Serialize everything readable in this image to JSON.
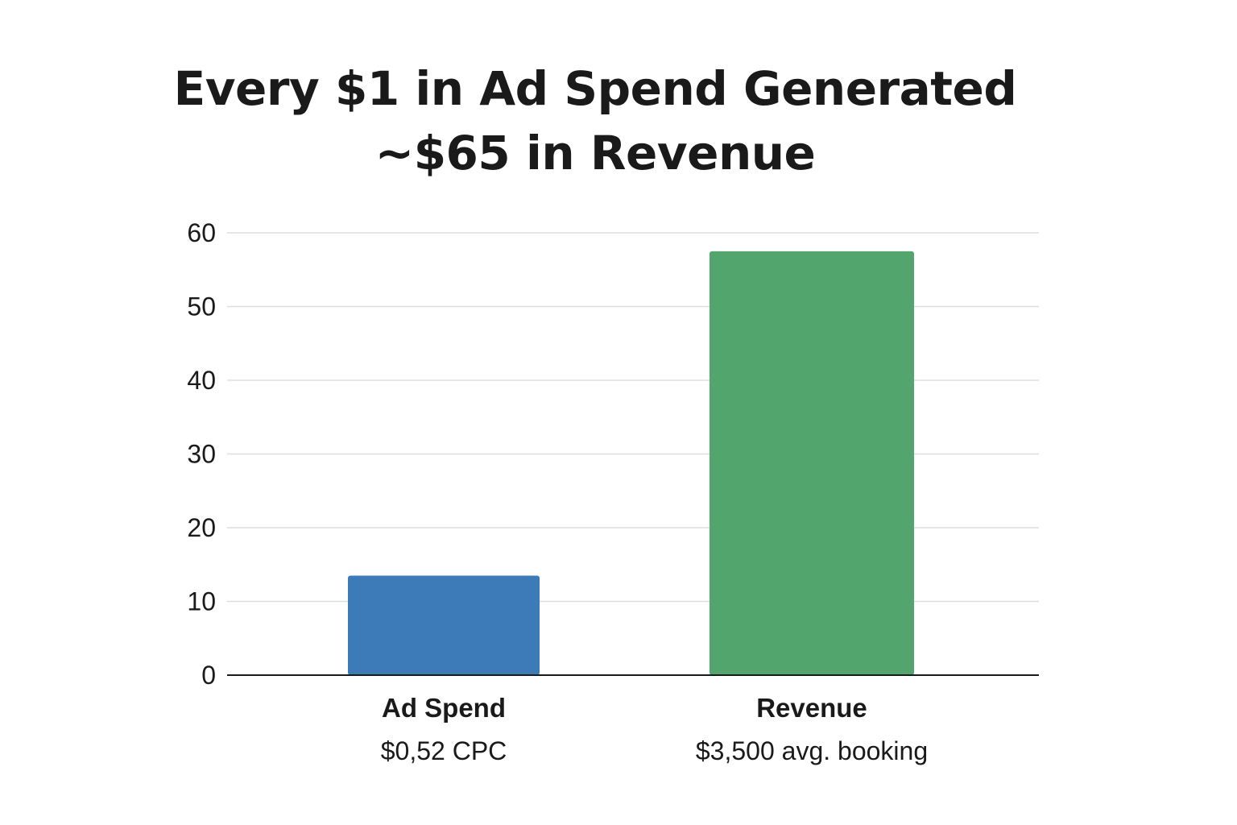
{
  "title_lines": [
    "Every $1 in Ad Spend Generated",
    "~$65 in Revenue"
  ],
  "chart_data": {
    "type": "bar",
    "title": "Every $1 in Ad Spend Generated ~$65 in Revenue",
    "xlabel": "",
    "ylabel": "",
    "categories": [
      "Ad Spend",
      "Revenue"
    ],
    "category_subtitles": [
      "$0,52 CPC",
      "$3,500 avg. booking"
    ],
    "values": [
      13.5,
      57.5
    ],
    "bar_colors": [
      "#3d7ab8",
      "#52a56c"
    ],
    "ylim": [
      0,
      60
    ],
    "yticks": [
      0,
      10,
      20,
      30,
      40,
      50,
      60
    ],
    "grid": true,
    "legend": "none"
  },
  "colors": {
    "grid": "#dddddd",
    "axis": "#1a1a1a",
    "text": "#1a1a1a"
  }
}
